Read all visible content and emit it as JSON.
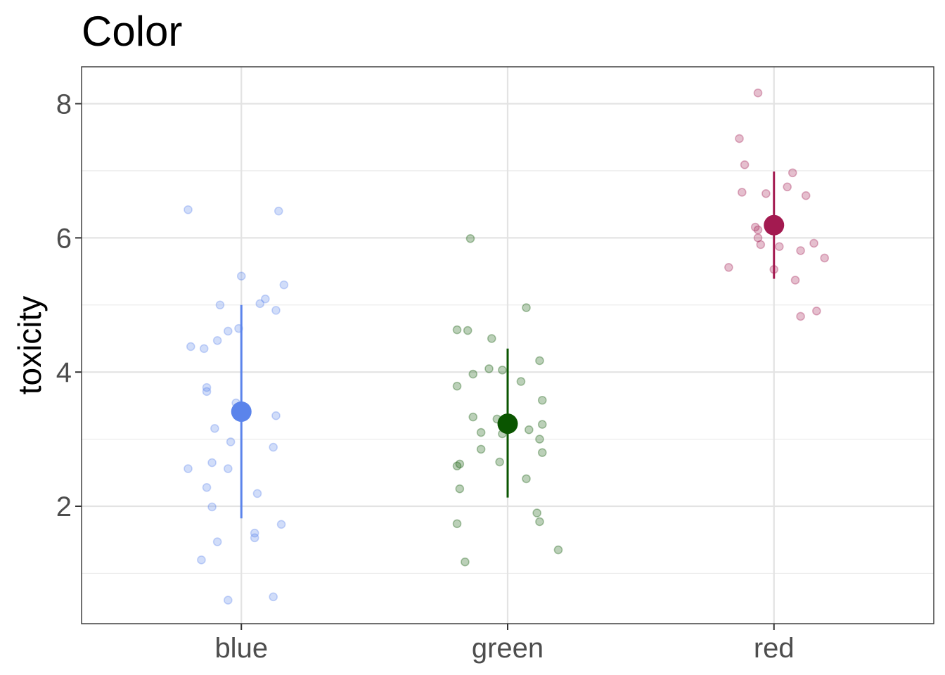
{
  "chart_data": {
    "type": "scatter",
    "title": "Color",
    "xlabel": "",
    "ylabel": "toxicity",
    "categories": [
      "blue",
      "green",
      "red"
    ],
    "y_ticks": [
      "2",
      "4",
      "6",
      "8"
    ],
    "ylim": [
      0.25,
      8.55
    ],
    "grid": true,
    "legend": "none",
    "series": [
      {
        "category": "blue",
        "color": "#5B84EB",
        "summary": {
          "mean": 3.41,
          "low": 1.82,
          "high": 5.0
        },
        "points": [
          {
            "dx": -0.2,
            "y": 6.42
          },
          {
            "dx": 0.14,
            "y": 6.4
          },
          {
            "dx": 0.0,
            "y": 5.43
          },
          {
            "dx": 0.16,
            "y": 5.3
          },
          {
            "dx": 0.09,
            "y": 5.09
          },
          {
            "dx": -0.08,
            "y": 5.0
          },
          {
            "dx": 0.07,
            "y": 5.02
          },
          {
            "dx": 0.13,
            "y": 4.92
          },
          {
            "dx": -0.01,
            "y": 4.65
          },
          {
            "dx": -0.05,
            "y": 4.61
          },
          {
            "dx": -0.09,
            "y": 4.47
          },
          {
            "dx": -0.19,
            "y": 4.38
          },
          {
            "dx": -0.14,
            "y": 4.35
          },
          {
            "dx": -0.13,
            "y": 3.77
          },
          {
            "dx": -0.13,
            "y": 3.71
          },
          {
            "dx": -0.02,
            "y": 3.54
          },
          {
            "dx": 0.13,
            "y": 3.35
          },
          {
            "dx": -0.1,
            "y": 3.16
          },
          {
            "dx": -0.04,
            "y": 2.96
          },
          {
            "dx": 0.12,
            "y": 2.88
          },
          {
            "dx": -0.11,
            "y": 2.65
          },
          {
            "dx": -0.2,
            "y": 2.56
          },
          {
            "dx": -0.05,
            "y": 2.56
          },
          {
            "dx": -0.13,
            "y": 2.28
          },
          {
            "dx": 0.06,
            "y": 2.19
          },
          {
            "dx": -0.11,
            "y": 1.99
          },
          {
            "dx": 0.15,
            "y": 1.73
          },
          {
            "dx": 0.05,
            "y": 1.6
          },
          {
            "dx": 0.05,
            "y": 1.53
          },
          {
            "dx": -0.09,
            "y": 1.47
          },
          {
            "dx": -0.15,
            "y": 1.2
          },
          {
            "dx": 0.12,
            "y": 0.65
          },
          {
            "dx": -0.05,
            "y": 0.6
          }
        ]
      },
      {
        "category": "green",
        "color": "#0A5500",
        "summary": {
          "mean": 3.23,
          "low": 2.13,
          "high": 4.35
        },
        "points": [
          {
            "dx": -0.14,
            "y": 5.99
          },
          {
            "dx": 0.07,
            "y": 4.96
          },
          {
            "dx": -0.19,
            "y": 4.63
          },
          {
            "dx": -0.15,
            "y": 4.62
          },
          {
            "dx": -0.06,
            "y": 4.5
          },
          {
            "dx": 0.12,
            "y": 4.17
          },
          {
            "dx": -0.07,
            "y": 4.05
          },
          {
            "dx": -0.02,
            "y": 4.03
          },
          {
            "dx": -0.13,
            "y": 3.97
          },
          {
            "dx": 0.05,
            "y": 3.86
          },
          {
            "dx": -0.19,
            "y": 3.79
          },
          {
            "dx": 0.13,
            "y": 3.58
          },
          {
            "dx": -0.13,
            "y": 3.33
          },
          {
            "dx": -0.04,
            "y": 3.3
          },
          {
            "dx": 0.13,
            "y": 3.22
          },
          {
            "dx": 0.08,
            "y": 3.14
          },
          {
            "dx": -0.1,
            "y": 3.1
          },
          {
            "dx": -0.02,
            "y": 3.08
          },
          {
            "dx": 0.12,
            "y": 3.0
          },
          {
            "dx": -0.1,
            "y": 2.85
          },
          {
            "dx": 0.13,
            "y": 2.8
          },
          {
            "dx": -0.03,
            "y": 2.66
          },
          {
            "dx": -0.18,
            "y": 2.63
          },
          {
            "dx": -0.19,
            "y": 2.6
          },
          {
            "dx": 0.07,
            "y": 2.41
          },
          {
            "dx": -0.18,
            "y": 2.26
          },
          {
            "dx": 0.11,
            "y": 1.9
          },
          {
            "dx": 0.12,
            "y": 1.77
          },
          {
            "dx": -0.19,
            "y": 1.74
          },
          {
            "dx": 0.19,
            "y": 1.35
          },
          {
            "dx": -0.16,
            "y": 1.17
          }
        ]
      },
      {
        "category": "red",
        "color": "#A31A50",
        "summary": {
          "mean": 6.19,
          "low": 5.39,
          "high": 6.99
        },
        "points": [
          {
            "dx": -0.06,
            "y": 8.16
          },
          {
            "dx": -0.13,
            "y": 7.48
          },
          {
            "dx": -0.11,
            "y": 7.09
          },
          {
            "dx": 0.07,
            "y": 6.97
          },
          {
            "dx": 0.05,
            "y": 6.76
          },
          {
            "dx": -0.12,
            "y": 6.68
          },
          {
            "dx": -0.03,
            "y": 6.66
          },
          {
            "dx": 0.12,
            "y": 6.63
          },
          {
            "dx": -0.07,
            "y": 6.16
          },
          {
            "dx": -0.06,
            "y": 6.12
          },
          {
            "dx": -0.06,
            "y": 6.0
          },
          {
            "dx": 0.15,
            "y": 5.92
          },
          {
            "dx": -0.05,
            "y": 5.9
          },
          {
            "dx": 0.02,
            "y": 5.87
          },
          {
            "dx": 0.1,
            "y": 5.81
          },
          {
            "dx": 0.19,
            "y": 5.7
          },
          {
            "dx": -0.17,
            "y": 5.56
          },
          {
            "dx": 0.0,
            "y": 5.53
          },
          {
            "dx": 0.08,
            "y": 5.37
          },
          {
            "dx": 0.16,
            "y": 4.91
          },
          {
            "dx": 0.1,
            "y": 4.83
          }
        ]
      }
    ]
  }
}
